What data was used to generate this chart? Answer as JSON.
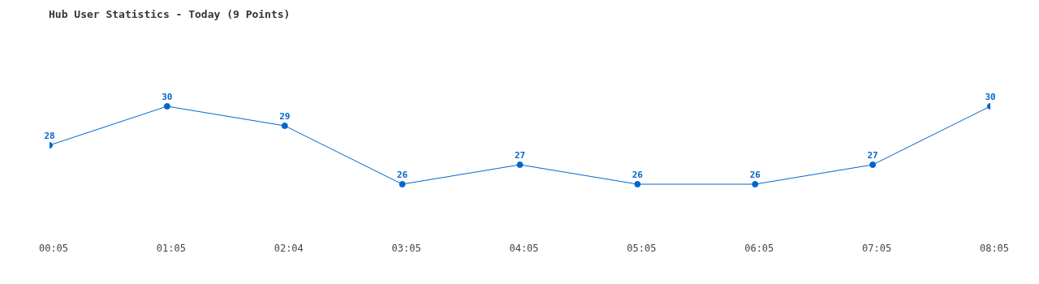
{
  "chart_data": {
    "type": "line",
    "title": "Hub User Statistics - Today (9 Points)",
    "categories": [
      "00:05",
      "01:05",
      "02:04",
      "03:05",
      "04:05",
      "05:05",
      "06:05",
      "07:05",
      "08:05"
    ],
    "values": [
      28,
      30,
      29,
      26,
      27,
      26,
      26,
      27,
      30
    ],
    "color": "#0066cc",
    "data_labels": true,
    "marker": "circle",
    "grid": false,
    "legend": false
  }
}
